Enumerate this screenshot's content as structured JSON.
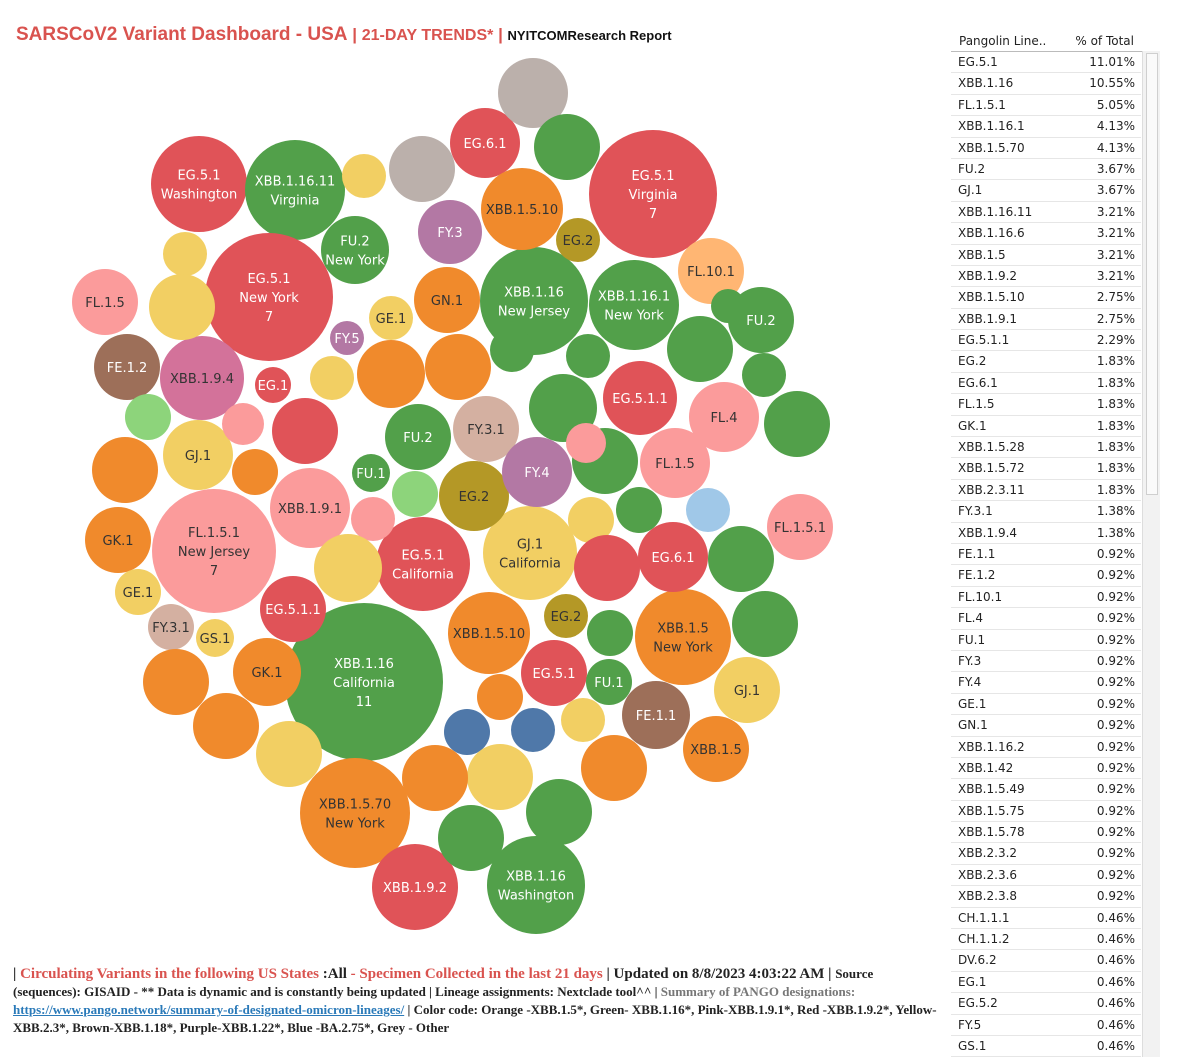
{
  "header": {
    "title": "SARSCoV2 Variant Dashboard - USA",
    "sep1": " | ",
    "subtitle": "21-DAY TRENDS*",
    "sep2": " | ",
    "report": "NYITCOMResearch Report"
  },
  "colors": {
    "orange": "#f08a2c",
    "green": "#52a04a",
    "pink": "#fb9b9b",
    "red": "#e05358",
    "yellow": "#f2cf63",
    "brown": "#9d6f59",
    "purple": "#b378a4",
    "blue": "#4f78a9",
    "grey": "#bbb0ab",
    "lightgreen": "#8dd47b",
    "lightblue": "#a0c8e8",
    "olive": "#b49826",
    "tan": "#d4b0a1",
    "magenta": "#d3729a",
    "peach": "#ffb673"
  },
  "chart_data": {
    "type": "bubble",
    "title": "SARSCoV2 Variant Dashboard - USA",
    "bubbles": [
      {
        "lines": [
          "EG.5.1",
          "Washington"
        ],
        "color": "red",
        "tc": "light"
      },
      {
        "lines": [
          "XBB.1.16.11",
          "Virginia"
        ],
        "color": "green",
        "tc": "light"
      },
      {
        "lines": [
          "EG.5.1",
          "New York",
          "7"
        ],
        "color": "red",
        "tc": "light"
      },
      {
        "lines": [
          "FU.2",
          "New York"
        ],
        "color": "green",
        "tc": "light"
      },
      {
        "lines": [
          "XBB.1.16",
          "New Jersey"
        ],
        "color": "green",
        "tc": "light"
      },
      {
        "lines": [
          "XBB.1.16.1",
          "New York"
        ],
        "color": "green",
        "tc": "light"
      },
      {
        "lines": [
          "EG.5.1",
          "Virginia",
          "7"
        ],
        "color": "red",
        "tc": "light"
      },
      {
        "lines": [
          "FL.1.5.1",
          "New Jersey",
          "7"
        ],
        "color": "pink",
        "tc": "dark"
      },
      {
        "lines": [
          "EG.5.1",
          "California"
        ],
        "color": "red",
        "tc": "light"
      },
      {
        "lines": [
          "GJ.1",
          "California"
        ],
        "color": "yellow",
        "tc": "dark"
      },
      {
        "lines": [
          "XBB.1.16",
          "California",
          "11"
        ],
        "color": "green",
        "tc": "light"
      },
      {
        "lines": [
          "XBB.1.5",
          "New York"
        ],
        "color": "orange",
        "tc": "dark"
      },
      {
        "lines": [
          "XBB.1.5.70",
          "New York"
        ],
        "color": "orange",
        "tc": "dark"
      },
      {
        "lines": [
          "XBB.1.16",
          "Washington"
        ],
        "color": "green",
        "tc": "light"
      },
      {
        "lines": [
          "EG.6.1"
        ],
        "color": "red",
        "tc": "light"
      },
      {
        "lines": [
          "XBB.1.5.10"
        ],
        "color": "orange",
        "tc": "dark"
      },
      {
        "lines": [
          "FY.3"
        ],
        "color": "purple",
        "tc": "light"
      },
      {
        "lines": [
          "EG.2"
        ],
        "color": "olive",
        "tc": "dark"
      },
      {
        "lines": [
          "FL.10.1"
        ],
        "color": "peach",
        "tc": "dark"
      },
      {
        "lines": [
          "FL.1.5"
        ],
        "color": "pink",
        "tc": "dark"
      },
      {
        "lines": [
          "GE.1"
        ],
        "color": "yellow",
        "tc": "dark"
      },
      {
        "lines": [
          "GN.1"
        ],
        "color": "orange",
        "tc": "dark"
      },
      {
        "lines": [
          "FU.2"
        ],
        "color": "green",
        "tc": "light"
      },
      {
        "lines": [
          "FY.5"
        ],
        "color": "purple",
        "tc": "light"
      },
      {
        "lines": [
          "FE.1.2"
        ],
        "color": "brown",
        "tc": "light"
      },
      {
        "lines": [
          "XBB.1.9.4"
        ],
        "color": "magenta",
        "tc": "dark"
      },
      {
        "lines": [
          "EG.1"
        ],
        "color": "red",
        "tc": "light"
      },
      {
        "lines": [
          "EG.5.1.1"
        ],
        "color": "red",
        "tc": "light"
      },
      {
        "lines": [
          "FL.4"
        ],
        "color": "pink",
        "tc": "dark"
      },
      {
        "lines": [
          "GJ.1"
        ],
        "color": "yellow",
        "tc": "dark"
      },
      {
        "lines": [
          "FU.2"
        ],
        "color": "green",
        "tc": "light"
      },
      {
        "lines": [
          "FY.3.1"
        ],
        "color": "tan",
        "tc": "dark"
      },
      {
        "lines": [
          "FU.1"
        ],
        "color": "green",
        "tc": "light"
      },
      {
        "lines": [
          "EG.2"
        ],
        "color": "olive",
        "tc": "dark"
      },
      {
        "lines": [
          "FY.4"
        ],
        "color": "purple",
        "tc": "light"
      },
      {
        "lines": [
          "FL.1.5"
        ],
        "color": "pink",
        "tc": "dark"
      },
      {
        "lines": [
          "XBB.1.9.1"
        ],
        "color": "pink",
        "tc": "dark"
      },
      {
        "lines": [
          "FL.1.5.1"
        ],
        "color": "pink",
        "tc": "dark"
      },
      {
        "lines": [
          "GK.1"
        ],
        "color": "orange",
        "tc": "dark"
      },
      {
        "lines": [
          "EG.6.1"
        ],
        "color": "red",
        "tc": "light"
      },
      {
        "lines": [
          "GE.1"
        ],
        "color": "yellow",
        "tc": "dark"
      },
      {
        "lines": [
          "EG.5.1.1"
        ],
        "color": "red",
        "tc": "light"
      },
      {
        "lines": [
          "EG.2"
        ],
        "color": "olive",
        "tc": "dark"
      },
      {
        "lines": [
          "FY.3.1"
        ],
        "color": "tan",
        "tc": "dark"
      },
      {
        "lines": [
          "GS.1"
        ],
        "color": "yellow",
        "tc": "dark"
      },
      {
        "lines": [
          "XBB.1.5.10"
        ],
        "color": "orange",
        "tc": "dark"
      },
      {
        "lines": [
          "GK.1"
        ],
        "color": "orange",
        "tc": "dark"
      },
      {
        "lines": [
          "EG.5.1"
        ],
        "color": "red",
        "tc": "light"
      },
      {
        "lines": [
          "FU.1"
        ],
        "color": "green",
        "tc": "light"
      },
      {
        "lines": [
          "GJ.1"
        ],
        "color": "yellow",
        "tc": "dark"
      },
      {
        "lines": [
          "FE.1.1"
        ],
        "color": "brown",
        "tc": "light"
      },
      {
        "lines": [
          "XBB.1.5"
        ],
        "color": "orange",
        "tc": "dark"
      },
      {
        "lines": [
          "XBB.1.9.2"
        ],
        "color": "red",
        "tc": "light"
      },
      {
        "lines": [],
        "color": "grey"
      },
      {
        "lines": [],
        "color": "green"
      },
      {
        "lines": [],
        "color": "yellow"
      },
      {
        "lines": [],
        "color": "grey"
      },
      {
        "lines": [],
        "color": "yellow"
      },
      {
        "lines": [],
        "color": "yellow"
      },
      {
        "lines": [],
        "color": "green"
      },
      {
        "lines": [],
        "color": "orange"
      },
      {
        "lines": [],
        "color": "orange"
      },
      {
        "lines": [],
        "color": "yellow"
      },
      {
        "lines": [],
        "color": "green"
      },
      {
        "lines": [],
        "color": "green"
      },
      {
        "lines": [],
        "color": "green"
      },
      {
        "lines": [],
        "color": "green"
      },
      {
        "lines": [],
        "color": "lightgreen"
      },
      {
        "lines": [],
        "color": "pink"
      },
      {
        "lines": [],
        "color": "red"
      },
      {
        "lines": [],
        "color": "orange"
      },
      {
        "lines": [],
        "color": "orange"
      },
      {
        "lines": [],
        "color": "green"
      },
      {
        "lines": [],
        "color": "green"
      },
      {
        "lines": [],
        "color": "lightgreen"
      },
      {
        "lines": [],
        "color": "pink"
      },
      {
        "lines": [],
        "color": "orange"
      },
      {
        "lines": [],
        "color": "green"
      },
      {
        "lines": [],
        "color": "lightblue"
      },
      {
        "lines": [],
        "color": "yellow"
      },
      {
        "lines": [],
        "color": "yellow"
      },
      {
        "lines": [],
        "color": "red"
      },
      {
        "lines": [],
        "color": "green"
      },
      {
        "lines": [],
        "color": "green"
      },
      {
        "lines": [],
        "color": "green"
      },
      {
        "lines": [],
        "color": "pink"
      },
      {
        "lines": [],
        "color": "red"
      },
      {
        "lines": [],
        "color": "green"
      },
      {
        "lines": [],
        "color": "pink"
      },
      {
        "lines": [],
        "color": "orange"
      },
      {
        "lines": [],
        "color": "blue"
      },
      {
        "lines": [],
        "color": "blue"
      },
      {
        "lines": [],
        "color": "yellow"
      },
      {
        "lines": [],
        "color": "yellow"
      },
      {
        "lines": [],
        "color": "yellow"
      },
      {
        "lines": [],
        "color": "orange"
      },
      {
        "lines": [],
        "color": "orange"
      },
      {
        "lines": [],
        "color": "green"
      },
      {
        "lines": [],
        "color": "green"
      },
      {
        "lines": [],
        "color": "orange"
      },
      {
        "lines": [],
        "color": "orange"
      },
      {
        "lines": [],
        "color": "green"
      }
    ]
  },
  "table": {
    "col1": "Pangolin Line..",
    "col2": "% of Total",
    "rows": [
      {
        "name": "EG.5.1",
        "pct": "11.01%"
      },
      {
        "name": "XBB.1.16",
        "pct": "10.55%"
      },
      {
        "name": "FL.1.5.1",
        "pct": "5.05%"
      },
      {
        "name": "XBB.1.16.1",
        "pct": "4.13%"
      },
      {
        "name": "XBB.1.5.70",
        "pct": "4.13%"
      },
      {
        "name": "FU.2",
        "pct": "3.67%"
      },
      {
        "name": "GJ.1",
        "pct": "3.67%"
      },
      {
        "name": "XBB.1.16.11",
        "pct": "3.21%"
      },
      {
        "name": "XBB.1.16.6",
        "pct": "3.21%"
      },
      {
        "name": "XBB.1.5",
        "pct": "3.21%"
      },
      {
        "name": "XBB.1.9.2",
        "pct": "3.21%"
      },
      {
        "name": "XBB.1.5.10",
        "pct": "2.75%"
      },
      {
        "name": "XBB.1.9.1",
        "pct": "2.75%"
      },
      {
        "name": "EG.5.1.1",
        "pct": "2.29%"
      },
      {
        "name": "EG.2",
        "pct": "1.83%"
      },
      {
        "name": "EG.6.1",
        "pct": "1.83%"
      },
      {
        "name": "FL.1.5",
        "pct": "1.83%"
      },
      {
        "name": "GK.1",
        "pct": "1.83%"
      },
      {
        "name": "XBB.1.5.28",
        "pct": "1.83%"
      },
      {
        "name": "XBB.1.5.72",
        "pct": "1.83%"
      },
      {
        "name": "XBB.2.3.11",
        "pct": "1.83%"
      },
      {
        "name": "FY.3.1",
        "pct": "1.38%"
      },
      {
        "name": "XBB.1.9.4",
        "pct": "1.38%"
      },
      {
        "name": "FE.1.1",
        "pct": "0.92%"
      },
      {
        "name": "FE.1.2",
        "pct": "0.92%"
      },
      {
        "name": "FL.10.1",
        "pct": "0.92%"
      },
      {
        "name": "FL.4",
        "pct": "0.92%"
      },
      {
        "name": "FU.1",
        "pct": "0.92%"
      },
      {
        "name": "FY.3",
        "pct": "0.92%"
      },
      {
        "name": "FY.4",
        "pct": "0.92%"
      },
      {
        "name": "GE.1",
        "pct": "0.92%"
      },
      {
        "name": "GN.1",
        "pct": "0.92%"
      },
      {
        "name": "XBB.1.16.2",
        "pct": "0.92%"
      },
      {
        "name": "XBB.1.42",
        "pct": "0.92%"
      },
      {
        "name": "XBB.1.5.49",
        "pct": "0.92%"
      },
      {
        "name": "XBB.1.5.75",
        "pct": "0.92%"
      },
      {
        "name": "XBB.1.5.78",
        "pct": "0.92%"
      },
      {
        "name": "XBB.2.3.2",
        "pct": "0.92%"
      },
      {
        "name": "XBB.2.3.6",
        "pct": "0.92%"
      },
      {
        "name": "XBB.2.3.8",
        "pct": "0.92%"
      },
      {
        "name": "CH.1.1.1",
        "pct": "0.46%"
      },
      {
        "name": "CH.1.1.2",
        "pct": "0.46%"
      },
      {
        "name": "DV.6.2",
        "pct": "0.46%"
      },
      {
        "name": "EG.1",
        "pct": "0.46%"
      },
      {
        "name": "EG.5.2",
        "pct": "0.46%"
      },
      {
        "name": "FY.5",
        "pct": "0.46%"
      },
      {
        "name": "GS.1",
        "pct": "0.46%"
      }
    ]
  },
  "footer": {
    "p1": "| ",
    "circ": "Circulating Variants in the following US States ",
    "all": ":All",
    "dash": " - ",
    "spec": "Specimen Collected in the last 21 days",
    "updated": " | Updated on 8/8/2023 4:03:22 AM | ",
    "source": "Source (sequences): GISAID - ** Data is dynamic and is constantly being updated | Lineage assignments: Nextclade tool^^ | ",
    "summary": "Summary of PANGO designations:",
    "link": "https://www.pango.network/summary-of-designated-omicron-lineages/",
    "colorcode": " | Color code: Orange -XBB.1.5*, Green- XBB.1.16*, Pink-XBB.1.9.1*, Red -XBB.1.9.2*, Yellow-XBB.2.3*, Brown-XBB.1.18*, Purple-XBB.1.22*, Blue -BA.2.75*, Grey - Other"
  }
}
